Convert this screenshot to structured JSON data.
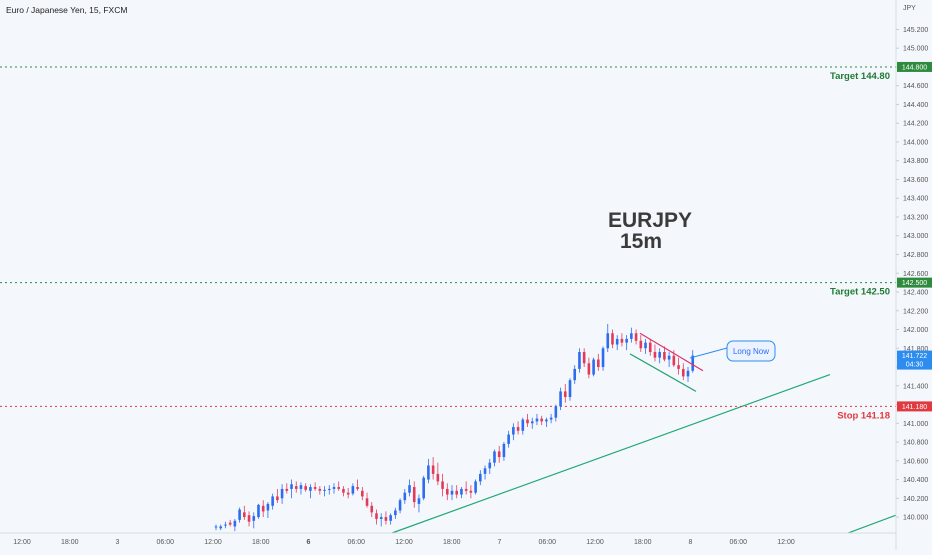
{
  "header": {
    "symbol_title": "Euro / Japanese Yen, 15, FXCM",
    "currency": "JPY"
  },
  "overlay": {
    "pair": "EURJPY",
    "timeframe": "15m",
    "callout": "Long Now"
  },
  "levels": {
    "target_high": {
      "label": "Target 144.80",
      "tag": "144.800",
      "value": 144.8,
      "color": "#2e8b3e",
      "label_color": "#1f7a34"
    },
    "target_mid": {
      "label": "Target 142.50",
      "tag": "142.500",
      "value": 142.5,
      "color": "#2e8b3e",
      "label_color": "#1f7a34"
    },
    "stop": {
      "label": "Stop 141.18",
      "tag": "141.180",
      "value": 141.18,
      "color": "#e0393e",
      "label_color": "#e0393e"
    }
  },
  "last_price": {
    "value": "141.722",
    "countdown": "04:30",
    "num": 141.722,
    "color": "#2d8cf0"
  },
  "colors": {
    "up": "#2d6cf0",
    "down": "#e23b5a",
    "trend": "#22a876",
    "channel_top": "#e0306a",
    "channel_bottom": "#1ea06a",
    "callout": "#2d8cf0"
  },
  "chart_data": {
    "type": "candlestick",
    "title": "EURJPY 15m",
    "ylabel": "JPY",
    "ylim": [
      139.83,
      145.45
    ],
    "y_ticks": [
      "145.200",
      "145.000",
      "144.800",
      "144.600",
      "144.400",
      "144.200",
      "144.000",
      "143.800",
      "143.600",
      "143.400",
      "143.200",
      "143.000",
      "142.800",
      "142.600",
      "142.400",
      "142.200",
      "142.000",
      "141.800",
      "141.600",
      "141.400",
      "141.200",
      "141.000",
      "140.800",
      "140.600",
      "140.400",
      "140.200",
      "140.000"
    ],
    "x_ticks": [
      "12:00",
      "18:00",
      "3",
      "06:00",
      "12:00",
      "18:00",
      "6",
      "06:00",
      "12:00",
      "18:00",
      "7",
      "06:00",
      "12:00",
      "18:00",
      "8",
      "06:00",
      "12:00"
    ],
    "grid": false,
    "series": [
      {
        "name": "Candles",
        "candles": [
          [
            139.9,
            139.92,
            139.86,
            139.9
          ],
          [
            139.88,
            139.92,
            139.86,
            139.9
          ],
          [
            139.92,
            139.95,
            139.88,
            139.92
          ],
          [
            139.94,
            139.97,
            139.9,
            139.92
          ],
          [
            139.9,
            139.98,
            139.85,
            139.96
          ],
          [
            139.97,
            140.1,
            139.94,
            140.08
          ],
          [
            140.05,
            140.12,
            139.97,
            140.0
          ],
          [
            140.02,
            140.06,
            139.9,
            139.95
          ],
          [
            139.96,
            140.05,
            139.88,
            140.01
          ],
          [
            140.0,
            140.14,
            139.98,
            140.13
          ],
          [
            140.12,
            140.18,
            140.0,
            140.06
          ],
          [
            140.07,
            140.16,
            139.99,
            140.14
          ],
          [
            140.12,
            140.25,
            140.08,
            140.22
          ],
          [
            140.22,
            140.3,
            140.15,
            140.18
          ],
          [
            140.2,
            140.35,
            140.14,
            140.3
          ],
          [
            140.3,
            140.36,
            140.25,
            140.28
          ],
          [
            140.3,
            140.4,
            140.2,
            140.35
          ],
          [
            140.33,
            140.38,
            140.26,
            140.3
          ],
          [
            140.3,
            140.37,
            140.24,
            140.34
          ],
          [
            140.33,
            140.36,
            140.27,
            140.29
          ],
          [
            140.28,
            140.35,
            140.2,
            140.32
          ],
          [
            140.32,
            140.37,
            140.28,
            140.3
          ],
          [
            140.3,
            140.33,
            140.24,
            140.28
          ],
          [
            140.28,
            140.33,
            140.22,
            140.29
          ],
          [
            140.29,
            140.34,
            140.24,
            140.3
          ],
          [
            140.3,
            140.36,
            140.25,
            140.32
          ],
          [
            140.32,
            140.38,
            140.28,
            140.3
          ],
          [
            140.3,
            140.33,
            140.22,
            140.26
          ],
          [
            140.26,
            140.31,
            140.2,
            140.24
          ],
          [
            140.25,
            140.36,
            140.23,
            140.33
          ],
          [
            140.32,
            140.4,
            140.28,
            140.3
          ],
          [
            140.28,
            140.32,
            140.18,
            140.22
          ],
          [
            140.2,
            140.26,
            140.1,
            140.12
          ],
          [
            140.12,
            140.16,
            140.0,
            140.05
          ],
          [
            140.04,
            140.08,
            139.92,
            139.98
          ],
          [
            139.98,
            140.04,
            139.9,
            140.0
          ],
          [
            140.0,
            140.06,
            139.92,
            139.96
          ],
          [
            139.96,
            140.04,
            139.92,
            140.02
          ],
          [
            140.02,
            140.1,
            139.98,
            140.07
          ],
          [
            140.07,
            140.2,
            140.04,
            140.18
          ],
          [
            140.18,
            140.3,
            140.14,
            140.26
          ],
          [
            140.26,
            140.4,
            140.22,
            140.34
          ],
          [
            140.32,
            140.38,
            140.1,
            140.16
          ],
          [
            140.14,
            140.24,
            140.05,
            140.2
          ],
          [
            140.2,
            140.44,
            140.18,
            140.42
          ],
          [
            140.4,
            140.62,
            140.36,
            140.55
          ],
          [
            140.55,
            140.64,
            140.4,
            140.46
          ],
          [
            140.46,
            140.58,
            140.34,
            140.38
          ],
          [
            140.38,
            140.46,
            140.22,
            140.3
          ],
          [
            140.3,
            140.36,
            140.18,
            140.24
          ],
          [
            140.24,
            140.34,
            140.18,
            140.28
          ],
          [
            140.28,
            140.34,
            140.2,
            140.24
          ],
          [
            140.24,
            140.32,
            140.2,
            140.3
          ],
          [
            140.3,
            140.38,
            140.24,
            140.28
          ],
          [
            140.28,
            140.34,
            140.2,
            140.26
          ],
          [
            140.26,
            140.4,
            140.24,
            140.38
          ],
          [
            140.38,
            140.5,
            140.34,
            140.46
          ],
          [
            140.46,
            140.55,
            140.4,
            140.52
          ],
          [
            140.52,
            140.62,
            140.46,
            140.58
          ],
          [
            140.58,
            140.72,
            140.54,
            140.7
          ],
          [
            140.7,
            140.76,
            140.58,
            140.64
          ],
          [
            140.64,
            140.8,
            140.6,
            140.78
          ],
          [
            140.78,
            140.92,
            140.74,
            140.88
          ],
          [
            140.88,
            141.0,
            140.82,
            140.96
          ],
          [
            140.96,
            141.02,
            140.88,
            140.92
          ],
          [
            140.92,
            141.06,
            140.88,
            141.04
          ],
          [
            141.04,
            141.1,
            140.96,
            141.0
          ],
          [
            141.0,
            141.06,
            140.94,
            141.02
          ],
          [
            141.02,
            141.1,
            140.98,
            141.05
          ],
          [
            141.05,
            141.08,
            140.98,
            141.02
          ],
          [
            141.02,
            141.06,
            140.96,
            141.04
          ],
          [
            141.04,
            141.1,
            141.0,
            141.06
          ],
          [
            141.06,
            141.2,
            141.02,
            141.18
          ],
          [
            141.18,
            141.38,
            141.14,
            141.34
          ],
          [
            141.34,
            141.42,
            141.22,
            141.28
          ],
          [
            141.28,
            141.48,
            141.24,
            141.46
          ],
          [
            141.46,
            141.62,
            141.42,
            141.58
          ],
          [
            141.58,
            141.8,
            141.54,
            141.76
          ],
          [
            141.76,
            141.8,
            141.6,
            141.64
          ],
          [
            141.64,
            141.7,
            141.48,
            141.52
          ],
          [
            141.52,
            141.7,
            141.5,
            141.68
          ],
          [
            141.68,
            141.74,
            141.56,
            141.6
          ],
          [
            141.6,
            141.82,
            141.56,
            141.8
          ],
          [
            141.8,
            142.06,
            141.76,
            141.96
          ],
          [
            141.96,
            142.0,
            141.8,
            141.84
          ],
          [
            141.84,
            141.94,
            141.78,
            141.9
          ],
          [
            141.9,
            141.96,
            141.82,
            141.86
          ],
          [
            141.86,
            141.94,
            141.78,
            141.9
          ],
          [
            141.9,
            142.02,
            141.86,
            141.96
          ],
          [
            141.96,
            142.0,
            141.84,
            141.88
          ],
          [
            141.88,
            141.94,
            141.76,
            141.8
          ],
          [
            141.8,
            141.9,
            141.74,
            141.86
          ],
          [
            141.86,
            141.9,
            141.72,
            141.76
          ],
          [
            141.76,
            141.84,
            141.66,
            141.7
          ],
          [
            141.7,
            141.8,
            141.64,
            141.76
          ],
          [
            141.76,
            141.82,
            141.66,
            141.68
          ],
          [
            141.68,
            141.76,
            141.6,
            141.72
          ],
          [
            141.72,
            141.78,
            141.6,
            141.62
          ],
          [
            141.62,
            141.7,
            141.52,
            141.58
          ],
          [
            141.58,
            141.64,
            141.46,
            141.5
          ],
          [
            141.5,
            141.6,
            141.44,
            141.56
          ],
          [
            141.56,
            141.78,
            141.54,
            141.722
          ]
        ]
      }
    ]
  }
}
